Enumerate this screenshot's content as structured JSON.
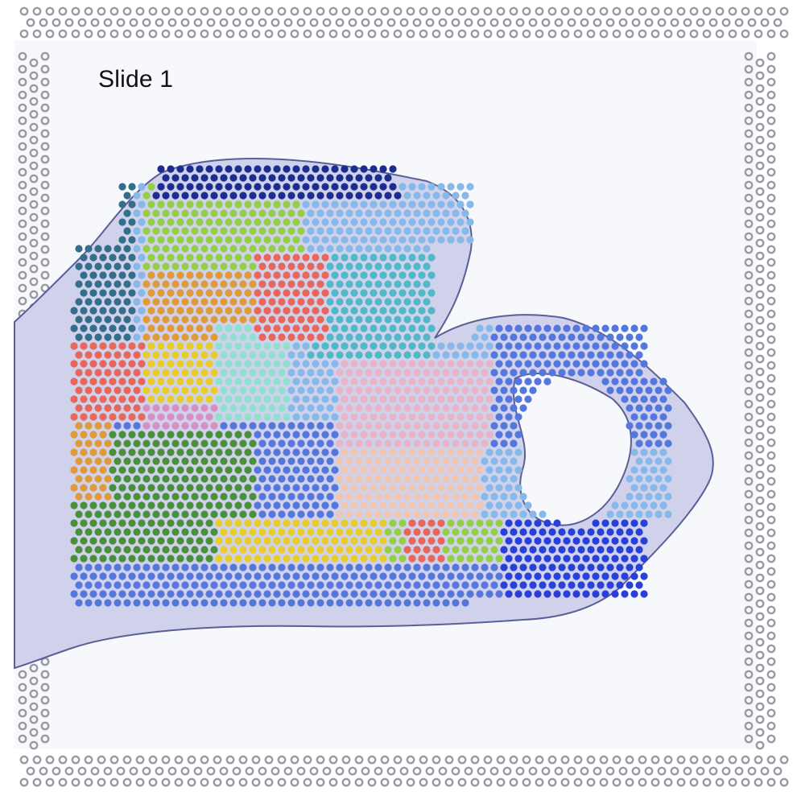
{
  "slide": {
    "title": "Slide 1"
  },
  "colors": {
    "background": "#f7f8fb",
    "fiducial_frame": "#9a9aa6",
    "tissue_stain": "#8e93c8",
    "tissue_edge": "#5a5f98"
  },
  "clusters": [
    {
      "name": "navy",
      "color": "#1c2d8f"
    },
    {
      "name": "dark-slate",
      "color": "#356e8a"
    },
    {
      "name": "light-green",
      "color": "#94cf45"
    },
    {
      "name": "salmon",
      "color": "#e8665a"
    },
    {
      "name": "orange",
      "color": "#e09a3a"
    },
    {
      "name": "yellow",
      "color": "#e8cd2a"
    },
    {
      "name": "pink",
      "color": "#d88fc2"
    },
    {
      "name": "light-pink",
      "color": "#e8b4c6"
    },
    {
      "name": "peach",
      "color": "#f1c6b0"
    },
    {
      "name": "mint",
      "color": "#8fe0cf"
    },
    {
      "name": "teal",
      "color": "#4fb8c9"
    },
    {
      "name": "sky",
      "color": "#86b8ea"
    },
    {
      "name": "blue",
      "color": "#5577dd"
    },
    {
      "name": "royal-blue",
      "color": "#2840d8"
    },
    {
      "name": "green",
      "color": "#4a8f3a"
    },
    {
      "name": "lavender",
      "color": "#b48fd0"
    }
  ]
}
